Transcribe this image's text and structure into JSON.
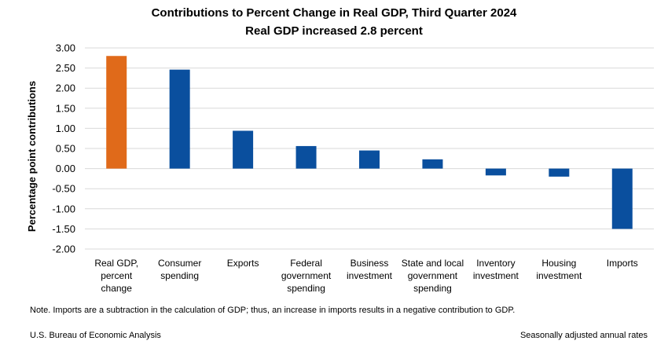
{
  "chart_data": {
    "type": "bar",
    "title": "Contributions to Percent Change in Real GDP, Third Quarter 2024",
    "subtitle": "Real GDP increased 2.8 percent",
    "xlabel": "",
    "ylabel": "Percentage point contributions",
    "ylim": [
      -2.0,
      3.0
    ],
    "y_ticks": [
      "3.00",
      "2.50",
      "2.00",
      "1.50",
      "1.00",
      "0.50",
      "0.00",
      "-0.50",
      "-1.00",
      "-1.50",
      "-2.00"
    ],
    "y_tick_values": [
      3.0,
      2.5,
      2.0,
      1.5,
      1.0,
      0.5,
      0.0,
      -0.5,
      -1.0,
      -1.5,
      -2.0
    ],
    "grid": true,
    "categories": [
      [
        "Real GDP,",
        "percent",
        "change"
      ],
      [
        "Consumer",
        "spending"
      ],
      [
        "Exports"
      ],
      [
        "Federal",
        "government",
        "spending"
      ],
      [
        "Business",
        "investment"
      ],
      [
        "State and local",
        "government",
        "spending"
      ],
      [
        "Inventory",
        "investment"
      ],
      [
        "Housing",
        "investment"
      ],
      [
        "Imports"
      ]
    ],
    "values": [
      2.8,
      2.46,
      0.94,
      0.56,
      0.45,
      0.23,
      -0.17,
      -0.2,
      -1.5
    ],
    "bar_colors": [
      "#e06a1a",
      "#0a4f9e",
      "#0a4f9e",
      "#0a4f9e",
      "#0a4f9e",
      "#0a4f9e",
      "#0a4f9e",
      "#0a4f9e",
      "#0a4f9e"
    ]
  },
  "footer": {
    "note": "Note. Imports are a subtraction in the calculation of GDP; thus, an increase in imports results in a negative contribution to GDP.",
    "source": "U.S. Bureau of Economic Analysis",
    "rates": "Seasonally adjusted annual rates"
  }
}
